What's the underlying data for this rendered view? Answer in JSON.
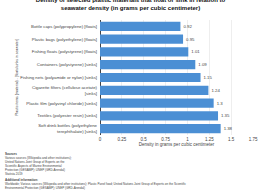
{
  "chart_data": {
    "type": "bar",
    "orientation": "horizontal",
    "title": "Density of selected plastic materials that float or sink in relation to\nseawater density (in grams per cubic centimeter)",
    "xlabel": "Density in grams per cubic centimeter",
    "ylabel": "Plastic items (material) - [floats/sinks in seawater]",
    "categories": [
      "Bottle caps (polypropylene) [floats]",
      "Plastic bags (polyethylene) [floats]",
      "Fishing floats (polystyrene) [floats]",
      "Containers (polystyrene) [sinks]",
      "Fishing nets (polyamide or nylon) [sinks]",
      "Cigarette filters (cellulose acetate)\n[sinks]",
      "Plastic film (polyvinyl chloride) [sinks]",
      "Textiles (polyester resin) [sinks]",
      "Soft drink bottles (polyethylene\nterephthalate) [sinks]"
    ],
    "values": [
      0.92,
      0.95,
      1.01,
      1.09,
      1.15,
      1.24,
      1.3,
      1.35,
      1.38
    ],
    "color": "#4b8fd4",
    "xlim": [
      0,
      1.75
    ],
    "xticks": [
      0,
      0.25,
      0.5,
      0.75,
      1,
      1.25,
      1.5,
      1.75
    ],
    "grid": true,
    "data_labels": true,
    "annotations": [
      "Sources",
      "Various sources (Wikipedia and other institutions);\nUnited Nations Joint Group of Experts on the\nScientific Aspects of Marine Environmental\nProtection (GESAMP); UNEP (GRD-Arendal)\nStatista 2019",
      "Additional information:",
      "Worldwide; Various sources (Wikipedia and other institutions); Plastic Panel food; United Nations Joint Group of Experts on the Scientific\nEnvironmental Protection (GESAMP); UNEP (GRD-Arendal)"
    ]
  }
}
